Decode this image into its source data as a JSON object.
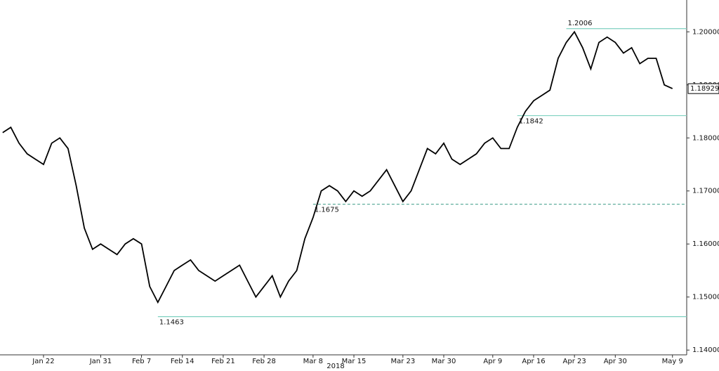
{
  "chart_data": {
    "type": "line",
    "x_label": "2018",
    "x": [
      "2018-01-15",
      "2018-01-16",
      "2018-01-17",
      "2018-01-18",
      "2018-01-19",
      "2018-01-22",
      "2018-01-23",
      "2018-01-24",
      "2018-01-25",
      "2018-01-26",
      "2018-01-29",
      "2018-01-30",
      "2018-01-31",
      "2018-02-01",
      "2018-02-02",
      "2018-02-05",
      "2018-02-06",
      "2018-02-07",
      "2018-02-08",
      "2018-02-09",
      "2018-02-12",
      "2018-02-13",
      "2018-02-14",
      "2018-02-15",
      "2018-02-16",
      "2018-02-19",
      "2018-02-20",
      "2018-02-21",
      "2018-02-22",
      "2018-02-23",
      "2018-02-26",
      "2018-02-27",
      "2018-02-28",
      "2018-03-01",
      "2018-03-02",
      "2018-03-05",
      "2018-03-06",
      "2018-03-07",
      "2018-03-08",
      "2018-03-09",
      "2018-03-12",
      "2018-03-13",
      "2018-03-14",
      "2018-03-15",
      "2018-03-16",
      "2018-03-19",
      "2018-03-20",
      "2018-03-21",
      "2018-03-22",
      "2018-03-23",
      "2018-03-26",
      "2018-03-27",
      "2018-03-28",
      "2018-03-29",
      "2018-03-30",
      "2018-04-02",
      "2018-04-03",
      "2018-04-04",
      "2018-04-05",
      "2018-04-06",
      "2018-04-09",
      "2018-04-10",
      "2018-04-11",
      "2018-04-12",
      "2018-04-13",
      "2018-04-16",
      "2018-04-17",
      "2018-04-18",
      "2018-04-19",
      "2018-04-20",
      "2018-04-23",
      "2018-04-24",
      "2018-04-25",
      "2018-04-26",
      "2018-04-27",
      "2018-04-30",
      "2018-05-01",
      "2018-05-02",
      "2018-05-03",
      "2018-05-04",
      "2018-05-07",
      "2018-05-08",
      "2018-05-09"
    ],
    "series": [
      {
        "color": "#000000",
        "values": [
          1.181,
          1.182,
          1.179,
          1.177,
          1.176,
          1.175,
          1.179,
          1.18,
          1.178,
          1.171,
          1.163,
          1.159,
          1.16,
          1.159,
          1.158,
          1.16,
          1.161,
          1.16,
          1.152,
          1.149,
          1.152,
          1.155,
          1.156,
          1.157,
          1.155,
          1.154,
          1.153,
          1.154,
          1.155,
          1.156,
          1.153,
          1.15,
          1.152,
          1.154,
          1.15,
          1.153,
          1.155,
          1.161,
          1.165,
          1.17,
          1.171,
          1.17,
          1.168,
          1.17,
          1.169,
          1.17,
          1.172,
          1.174,
          1.171,
          1.168,
          1.17,
          1.174,
          1.178,
          1.177,
          1.179,
          1.176,
          1.175,
          1.176,
          1.177,
          1.179,
          1.18,
          1.178,
          1.178,
          1.182,
          1.185,
          1.187,
          1.188,
          1.189,
          1.195,
          1.198,
          1.2,
          1.197,
          1.193,
          1.198,
          1.199,
          1.198,
          1.196,
          1.197,
          1.194,
          1.195,
          1.195,
          1.19,
          1.18929
        ]
      }
    ],
    "xlim": [
      "2018-01-15",
      "2018-05-11"
    ],
    "xticks": [
      {
        "value": "2018-01-22",
        "label": "Jan 22"
      },
      {
        "value": "2018-01-31",
        "label": "Jan 31"
      },
      {
        "value": "2018-02-07",
        "label": "Feb 7"
      },
      {
        "value": "2018-02-14",
        "label": "Feb 14"
      },
      {
        "value": "2018-02-21",
        "label": "Feb 21"
      },
      {
        "value": "2018-02-28",
        "label": "Feb 28"
      },
      {
        "value": "2018-03-08",
        "label": "Mar 8"
      },
      {
        "value": "2018-03-15",
        "label": "Mar 15"
      },
      {
        "value": "2018-03-23",
        "label": "Mar 23"
      },
      {
        "value": "2018-03-30",
        "label": "Mar 30"
      },
      {
        "value": "2018-04-09",
        "label": "Apr 9"
      },
      {
        "value": "2018-04-16",
        "label": "Apr 16"
      },
      {
        "value": "2018-04-23",
        "label": "Apr 23"
      },
      {
        "value": "2018-04-30",
        "label": "Apr 30"
      },
      {
        "value": "2018-05-09",
        "label": "May 9"
      }
    ],
    "ylim": [
      1.1391,
      1.206
    ],
    "yticks": [
      {
        "value": 1.14,
        "label": "1.14000"
      },
      {
        "value": 1.15,
        "label": "1.15000"
      },
      {
        "value": 1.16,
        "label": "1.16000"
      },
      {
        "value": 1.17,
        "label": "1.17000"
      },
      {
        "value": 1.18,
        "label": "1.18000"
      },
      {
        "value": 1.19,
        "label": "1.19000"
      },
      {
        "value": 1.2,
        "label": "1.20000"
      }
    ],
    "levels": [
      {
        "value": 1.2006,
        "x": "2018-04-20",
        "color": "#7fd1c0",
        "style": "solid"
      },
      {
        "value": 1.1842,
        "x": "2018-04-12",
        "color": "#7fd1c0",
        "style": "solid"
      },
      {
        "value": 1.1675,
        "x": "2018-03-08",
        "color": "#5fae9c",
        "style": "dashed"
      },
      {
        "value": 1.1463,
        "x": "2018-02-09",
        "color": "#7fd1c0",
        "style": "solid"
      }
    ]
  }
}
